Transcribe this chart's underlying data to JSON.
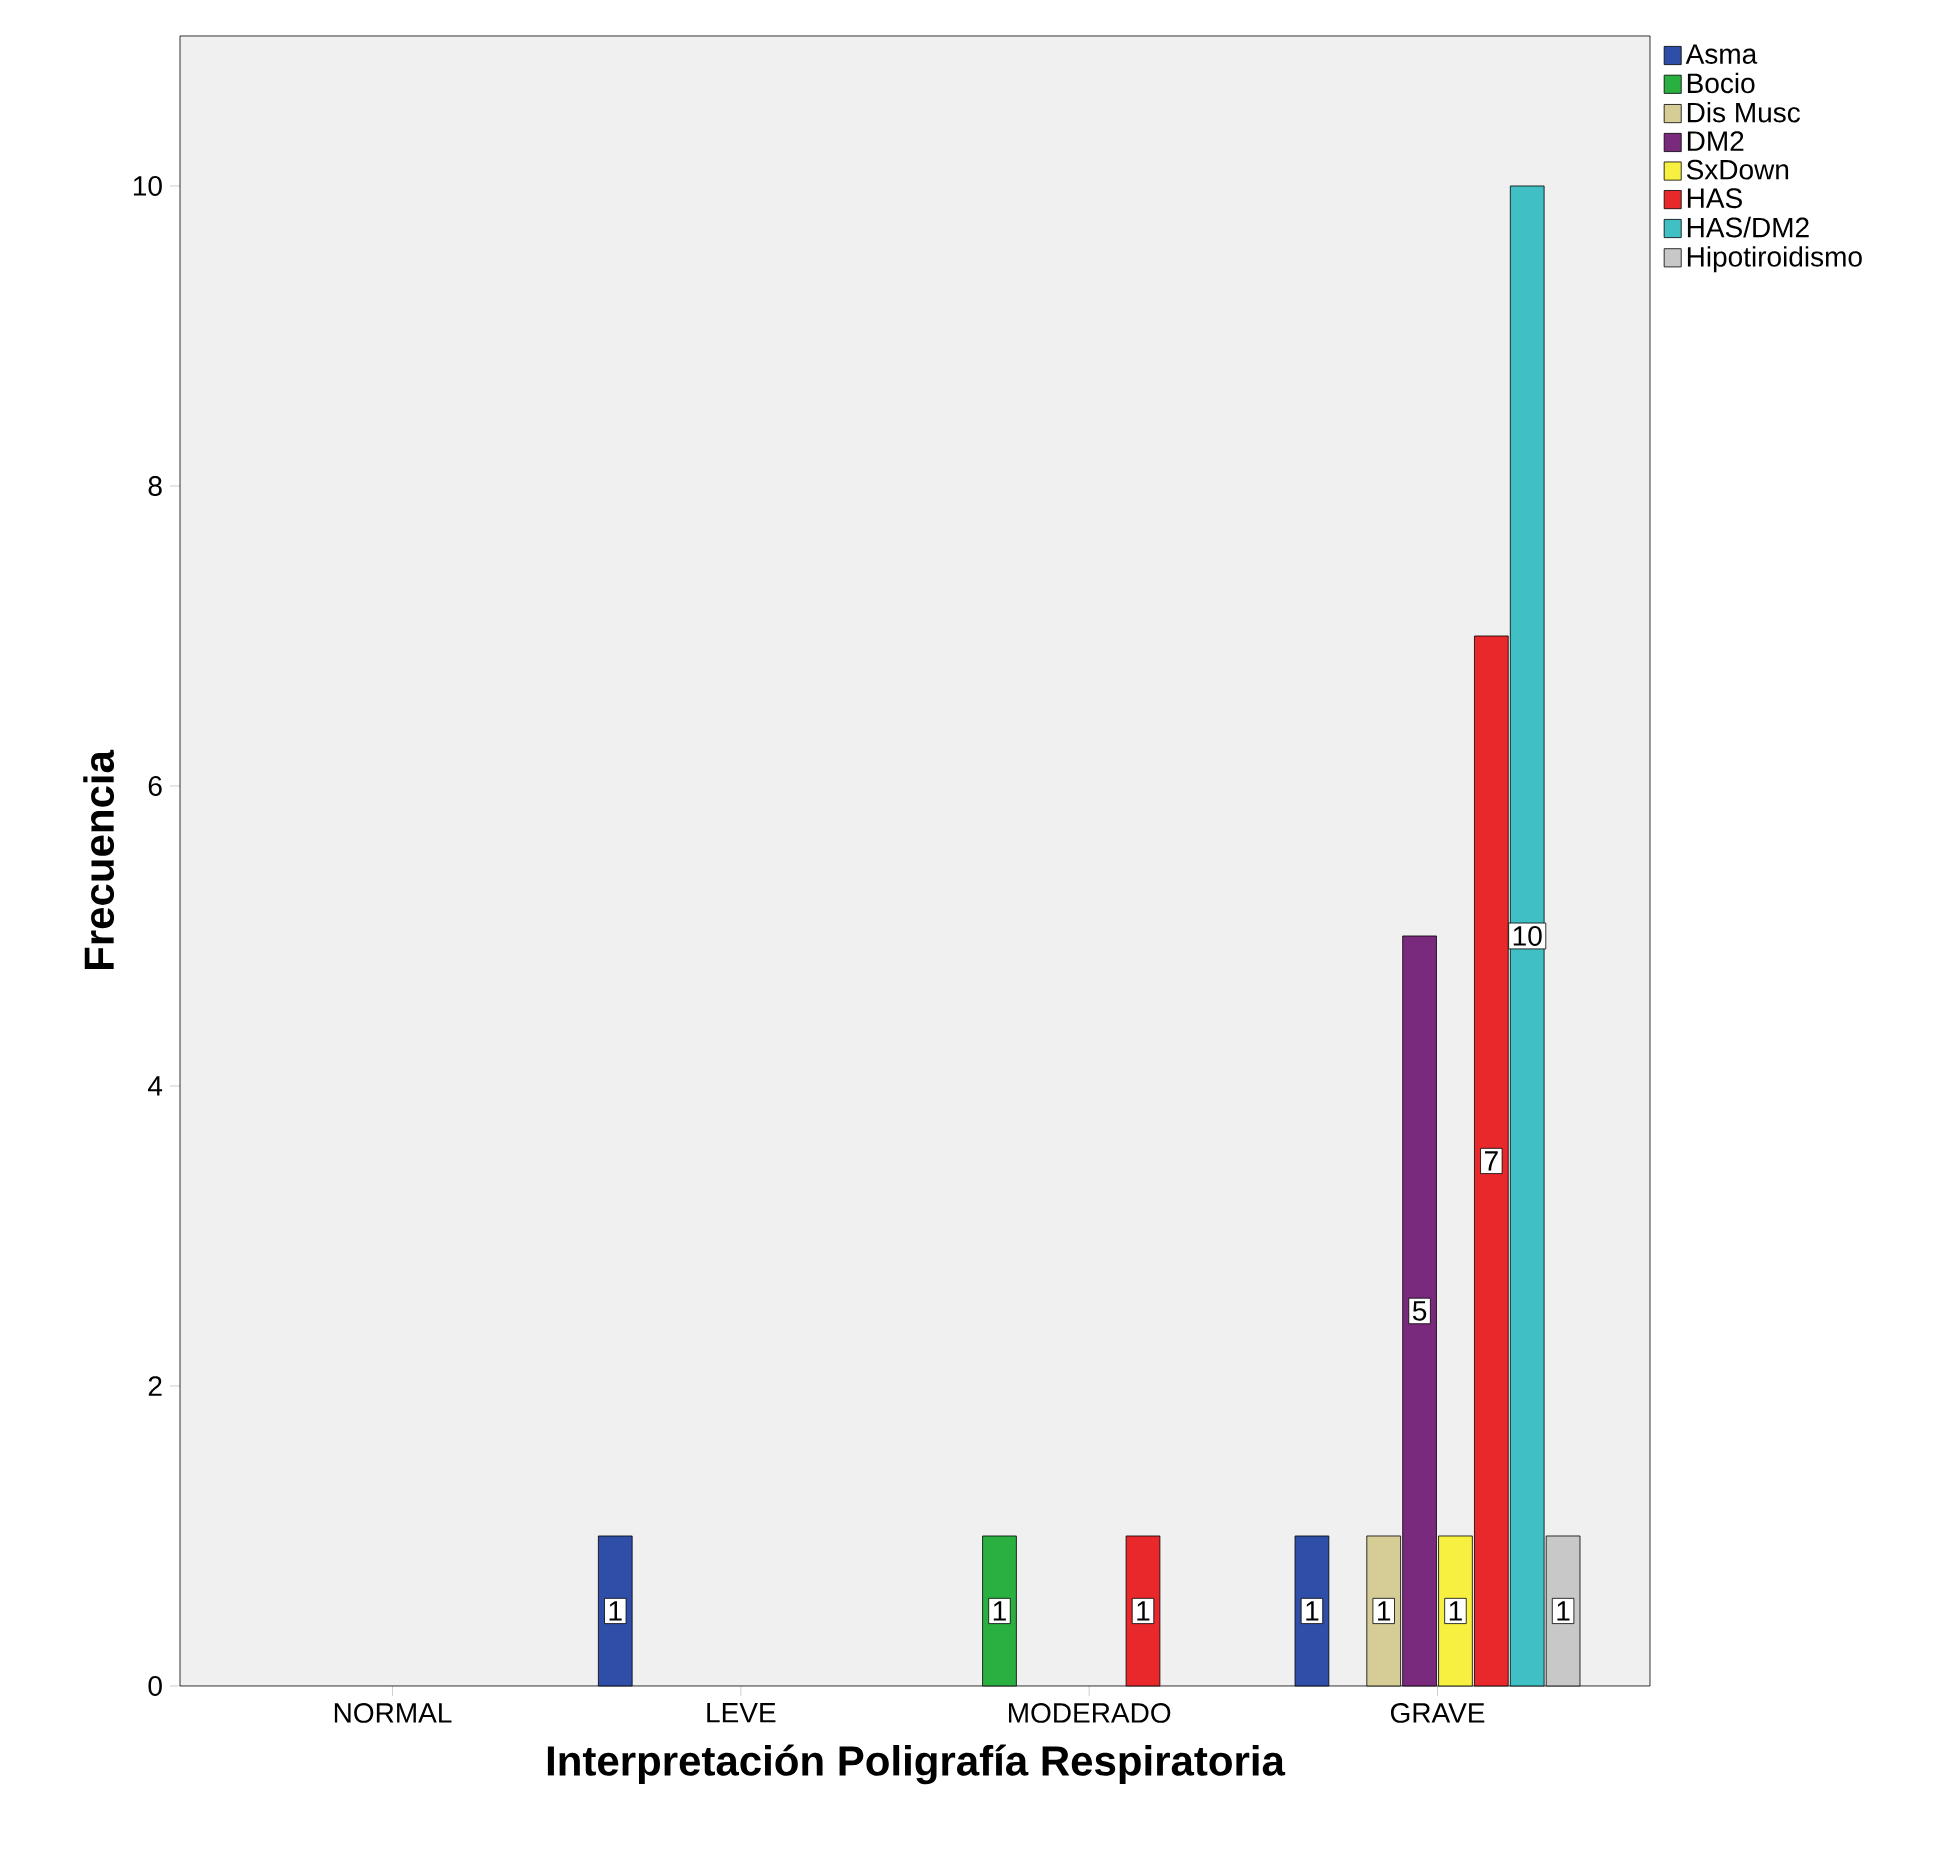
{
  "chart_data": {
    "type": "bar",
    "xlabel": "Interpretación Poligrafía Respiratoria",
    "ylabel": "Frecuencia",
    "categories": [
      "NORMAL",
      "LEVE",
      "MODERADO",
      "GRAVE"
    ],
    "series": [
      {
        "name": "Asma",
        "color": "#2f4ea8",
        "values": [
          null,
          1,
          null,
          1
        ]
      },
      {
        "name": "Bocio",
        "color": "#2ab040",
        "values": [
          null,
          null,
          1,
          null
        ]
      },
      {
        "name": "Dis Musc",
        "color": "#d6cc96",
        "values": [
          null,
          null,
          null,
          1
        ]
      },
      {
        "name": "DM2",
        "color": "#7a2a7c",
        "values": [
          null,
          null,
          null,
          5
        ]
      },
      {
        "name": "SxDown",
        "color": "#f8f040",
        "values": [
          null,
          null,
          null,
          1
        ]
      },
      {
        "name": "HAS",
        "color": "#e8282a",
        "values": [
          null,
          null,
          1,
          7
        ]
      },
      {
        "name": "HAS/DM2",
        "color": "#40c0c4",
        "values": [
          null,
          null,
          null,
          10
        ]
      },
      {
        "name": "Hipotiroidismo",
        "color": "#c8c8c8",
        "values": [
          null,
          null,
          null,
          1
        ]
      }
    ],
    "ylim": [
      0,
      11
    ],
    "yticks": [
      0,
      2,
      4,
      6,
      8,
      10
    ],
    "grid": false,
    "legend": "top right",
    "data_labels": true
  }
}
